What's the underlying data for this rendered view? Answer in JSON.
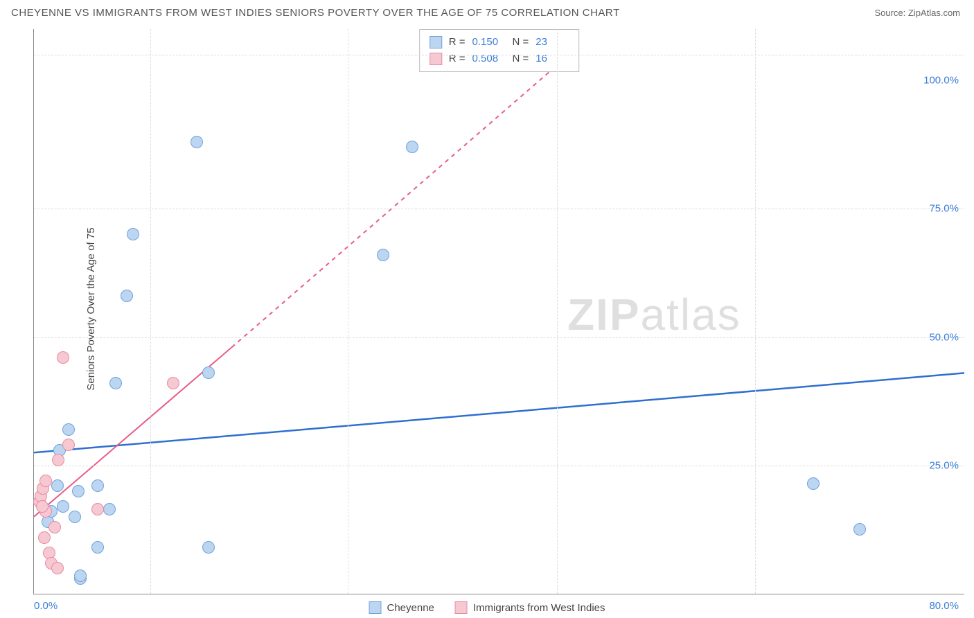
{
  "header": {
    "title": "CHEYENNE VS IMMIGRANTS FROM WEST INDIES SENIORS POVERTY OVER THE AGE OF 75 CORRELATION CHART",
    "source": "Source: ZipAtlas.com"
  },
  "chart": {
    "type": "scatter",
    "ylabel": "Seniors Poverty Over the Age of 75",
    "xlim": [
      0,
      80
    ],
    "ylim": [
      0,
      110
    ],
    "xticks": [
      {
        "value": 0,
        "label": "0.0%"
      },
      {
        "value": 80,
        "label": "80.0%"
      }
    ],
    "yticks": [
      {
        "value": 25,
        "label": "25.0%"
      },
      {
        "value": 50,
        "label": "50.0%"
      },
      {
        "value": 75,
        "label": "75.0%"
      },
      {
        "value": 100,
        "label": "100.0%"
      }
    ],
    "ygrid": [
      25,
      50,
      75,
      105
    ],
    "xgrid": [
      10,
      27,
      45,
      62
    ],
    "background_color": "#ffffff",
    "grid_color": "#dddddd",
    "axis_color": "#888888",
    "point_radius": 9,
    "series": [
      {
        "name": "Cheyenne",
        "fill": "#bcd5f0",
        "stroke": "#6ea3dd",
        "r_label": "R  =",
        "r_value": "0.150",
        "n_label": "N  =",
        "n_value": "23",
        "trend": {
          "color": "#2f6fd0",
          "width": 2.5,
          "dash_after_x": 80,
          "points_solid": [
            [
              0,
              27.5
            ],
            [
              80,
              43
            ]
          ],
          "points_dash": []
        },
        "points": [
          [
            1.2,
            14
          ],
          [
            1.5,
            16
          ],
          [
            2.0,
            21
          ],
          [
            2.2,
            28
          ],
          [
            3.0,
            32
          ],
          [
            3.5,
            15
          ],
          [
            3.8,
            20
          ],
          [
            4.0,
            3
          ],
          [
            4.0,
            3.5
          ],
          [
            5.5,
            21
          ],
          [
            5.5,
            9
          ],
          [
            6.5,
            16.5
          ],
          [
            7.0,
            41
          ],
          [
            8.0,
            58
          ],
          [
            8.5,
            70
          ],
          [
            14.0,
            88
          ],
          [
            15.0,
            43
          ],
          [
            15.0,
            9
          ],
          [
            32.5,
            87
          ],
          [
            30.0,
            66
          ],
          [
            67.0,
            21.5
          ],
          [
            71.0,
            12.5
          ],
          [
            2.5,
            17
          ]
        ]
      },
      {
        "name": "Immigrants from West Indies",
        "fill": "#f6c8d2",
        "stroke": "#e98ba2",
        "r_label": "R  =",
        "r_value": "0.508",
        "n_label": "N  =",
        "n_value": "16",
        "trend": {
          "color": "#e75d87",
          "width": 2,
          "dash_after_x": 17,
          "points_solid": [
            [
              0,
              15
            ],
            [
              17,
              48
            ]
          ],
          "points_dash": [
            [
              17,
              48
            ],
            [
              45,
              103
            ]
          ]
        },
        "points": [
          [
            0.5,
            18
          ],
          [
            0.6,
            19
          ],
          [
            0.8,
            20.5
          ],
          [
            0.9,
            11
          ],
          [
            1.0,
            16
          ],
          [
            1.0,
            22
          ],
          [
            1.3,
            8
          ],
          [
            1.5,
            6
          ],
          [
            1.8,
            13
          ],
          [
            2.0,
            5
          ],
          [
            2.1,
            26
          ],
          [
            2.5,
            46
          ],
          [
            3.0,
            29
          ],
          [
            5.5,
            16.5
          ],
          [
            12.0,
            41
          ],
          [
            0.7,
            17
          ]
        ]
      }
    ]
  },
  "watermark": {
    "part1": "ZIP",
    "part2": "atlas"
  },
  "legend": {
    "items": [
      {
        "label": "Cheyenne",
        "series": 0
      },
      {
        "label": "Immigrants from West Indies",
        "series": 1
      }
    ]
  }
}
